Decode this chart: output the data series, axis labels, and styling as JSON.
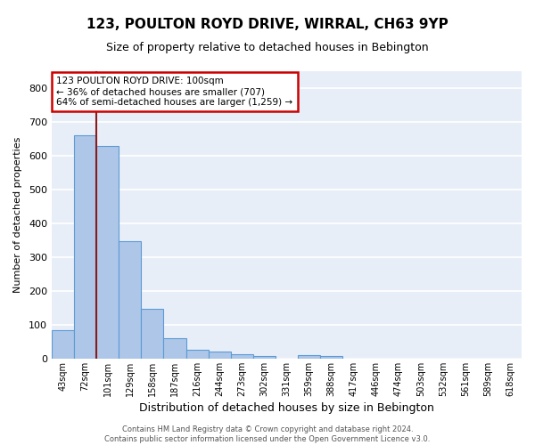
{
  "title": "123, POULTON ROYD DRIVE, WIRRAL, CH63 9YP",
  "subtitle": "Size of property relative to detached houses in Bebington",
  "xlabel": "Distribution of detached houses by size in Bebington",
  "ylabel": "Number of detached properties",
  "footer_line1": "Contains HM Land Registry data © Crown copyright and database right 2024.",
  "footer_line2": "Contains public sector information licensed under the Open Government Licence v3.0.",
  "categories": [
    "43sqm",
    "72sqm",
    "101sqm",
    "129sqm",
    "158sqm",
    "187sqm",
    "216sqm",
    "244sqm",
    "273sqm",
    "302sqm",
    "331sqm",
    "359sqm",
    "388sqm",
    "417sqm",
    "446sqm",
    "474sqm",
    "503sqm",
    "532sqm",
    "561sqm",
    "589sqm",
    "618sqm"
  ],
  "values": [
    83,
    660,
    630,
    348,
    147,
    60,
    25,
    20,
    12,
    8,
    0,
    10,
    8,
    0,
    0,
    0,
    0,
    0,
    0,
    0,
    0
  ],
  "bar_color": "#aec6e8",
  "bar_edge_color": "#5b9bd5",
  "background_color": "#e8eef8",
  "grid_color": "#ffffff",
  "marker_value": "101sqm",
  "marker_color": "#8b1a1a",
  "annotation_text": "123 POULTON ROYD DRIVE: 100sqm\n← 36% of detached houses are smaller (707)\n64% of semi-detached houses are larger (1,259) →",
  "annotation_box_color": "#ffffff",
  "annotation_box_edge": "#cc0000",
  "ylim": [
    0,
    850
  ],
  "yticks": [
    0,
    100,
    200,
    300,
    400,
    500,
    600,
    700,
    800
  ]
}
